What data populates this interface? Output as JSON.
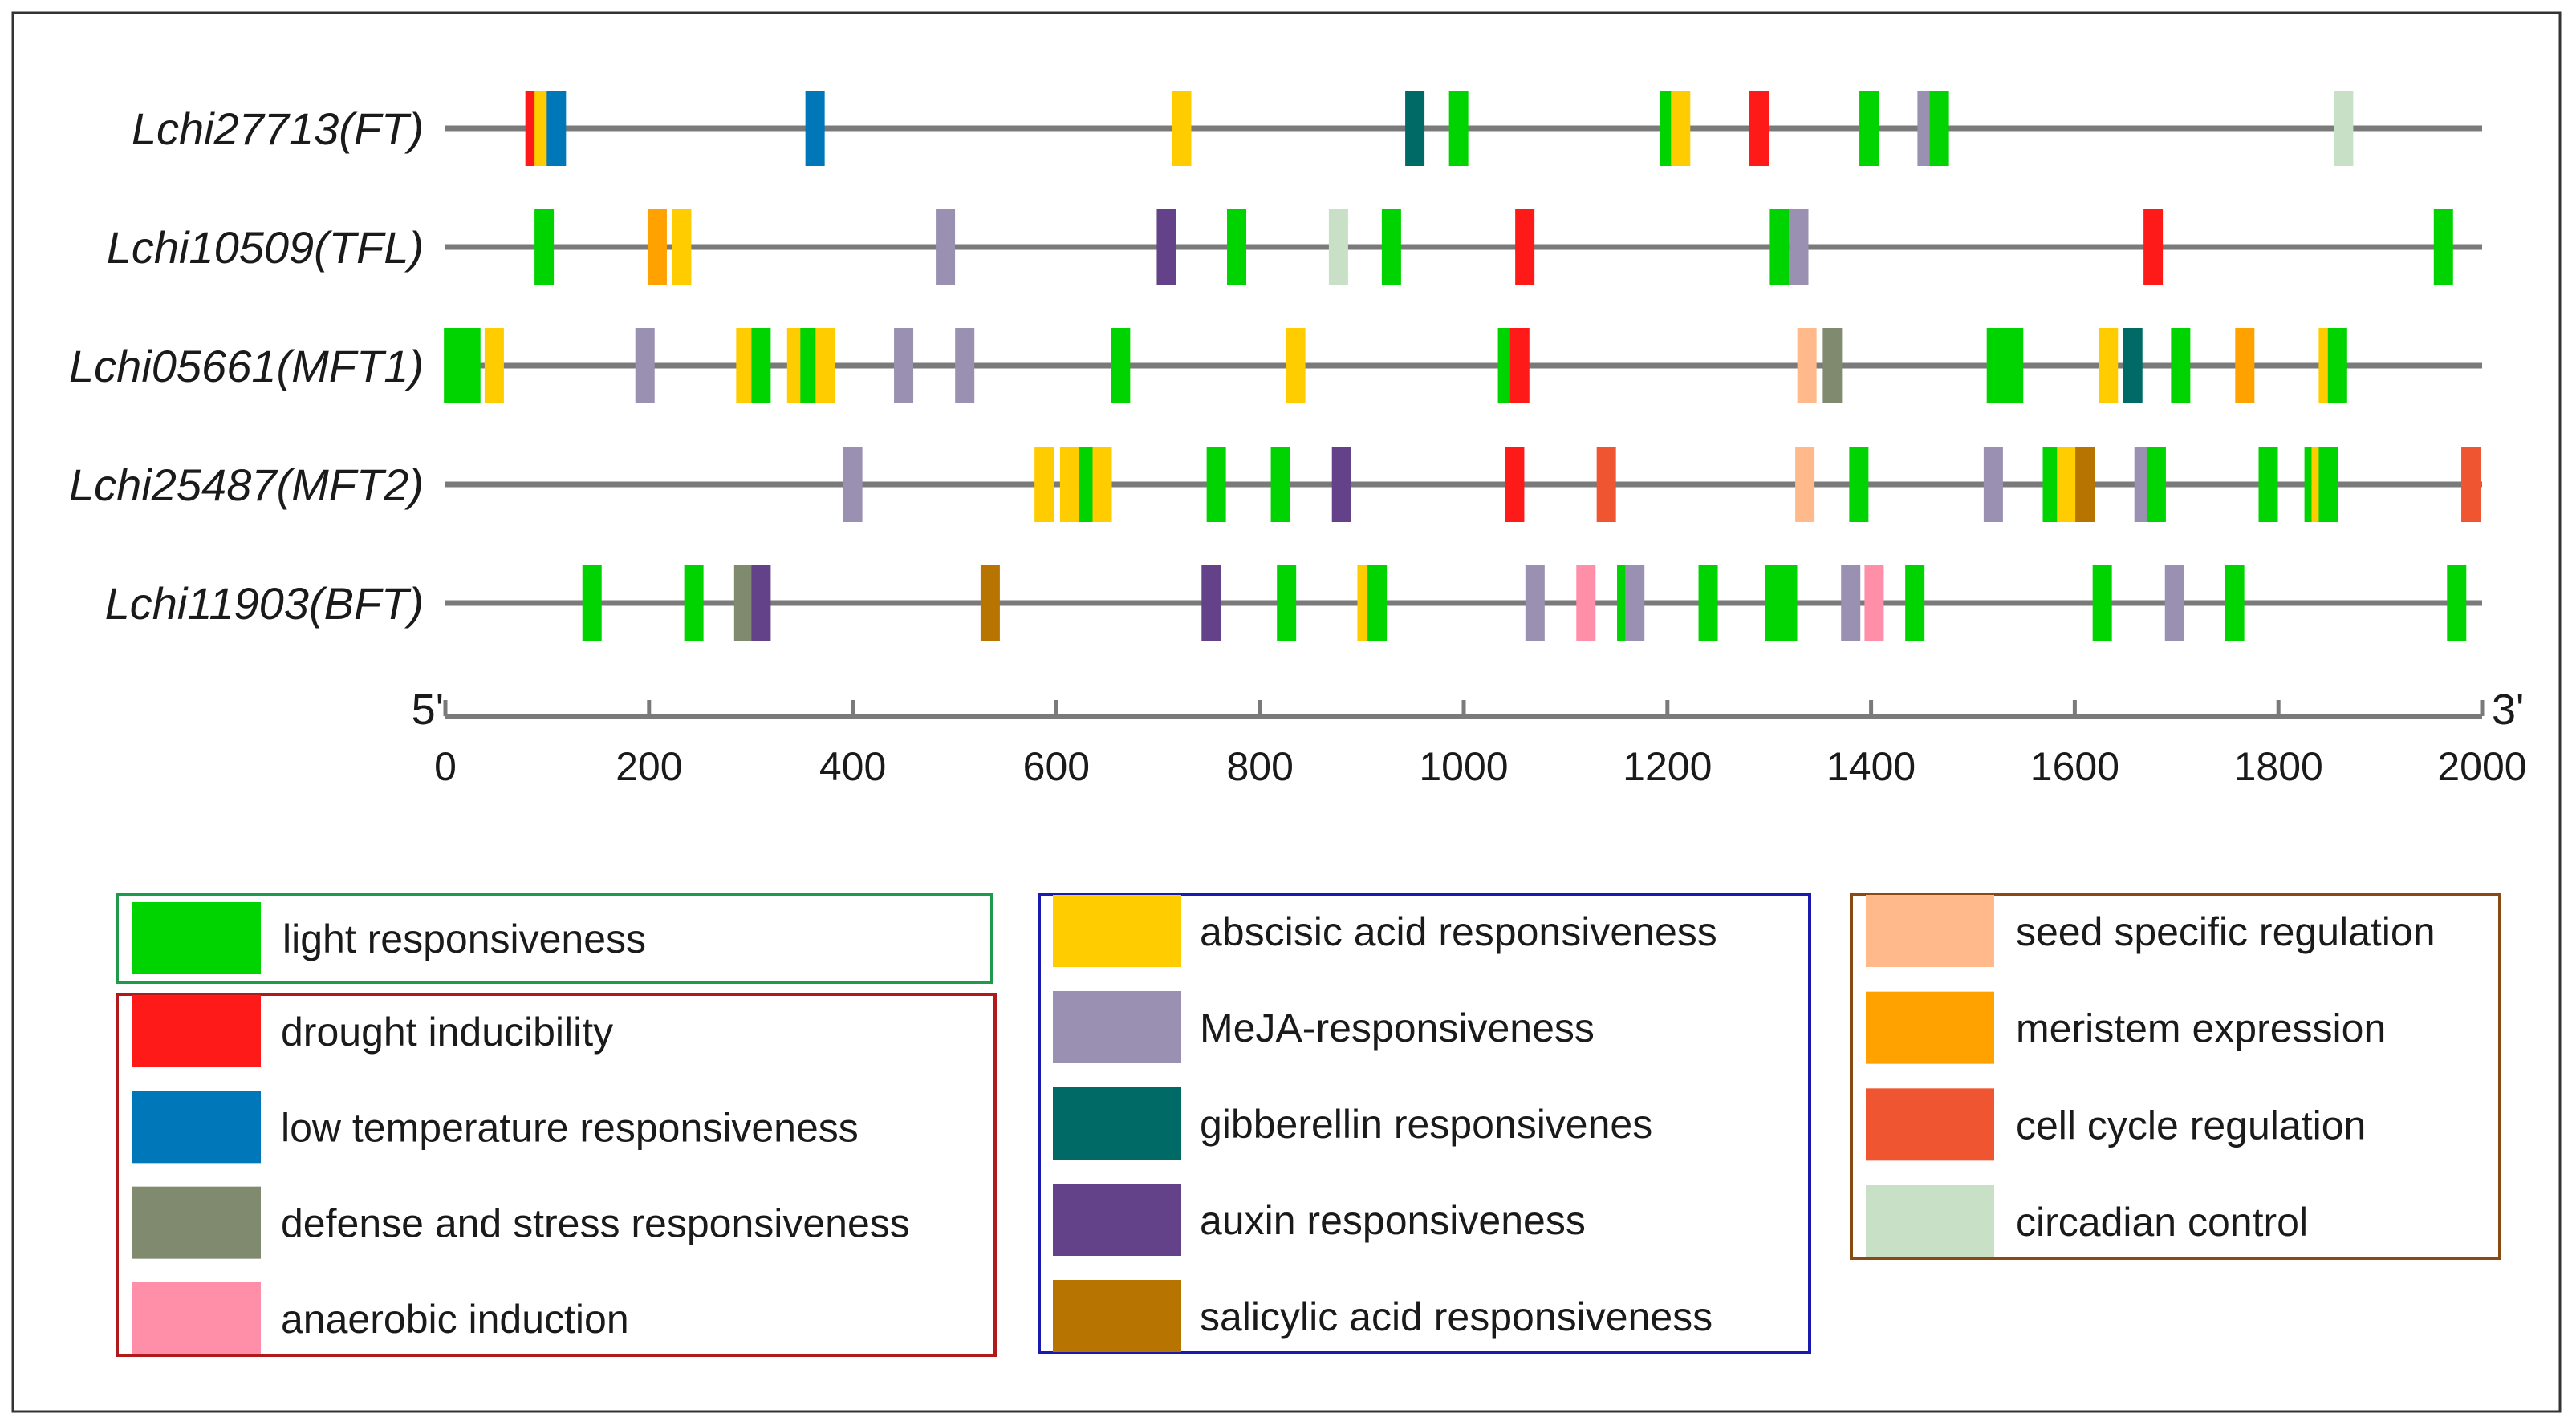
{
  "chart_data": {
    "type": "promoter-element-map",
    "xlim": [
      0,
      2000
    ],
    "xticks": [
      0,
      200,
      400,
      600,
      800,
      1000,
      1200,
      1400,
      1600,
      1800,
      2000
    ],
    "end_labels": {
      "left": "5'",
      "right": "3'"
    },
    "categories": {
      "light": {
        "label": "light responsiveness",
        "color": "#00d400"
      },
      "drought": {
        "label": "drought inducibility",
        "color": "#ff1a1a"
      },
      "lowtemp": {
        "label": "low temperature responsiveness",
        "color": "#0077b8"
      },
      "defense": {
        "label": "defense and stress responsiveness",
        "color": "#7f8a6e"
      },
      "anaerobic": {
        "label": "anaerobic induction",
        "color": "#ff8ea8"
      },
      "aba": {
        "label": "abscisic acid responsiveness",
        "color": "#ffcc00"
      },
      "meja": {
        "label": "MeJA-responsiveness",
        "color": "#9a90b2"
      },
      "gibberellin": {
        "label": "gibberellin responsivenes",
        "color": "#006b66"
      },
      "auxin": {
        "label": "auxin responsiveness",
        "color": "#64428a"
      },
      "salicylic": {
        "label": "salicylic acid responsiveness",
        "color": "#b87400"
      },
      "seed": {
        "label": "seed specific regulation",
        "color": "#ffb98a"
      },
      "meristem": {
        "label": "meristem expression",
        "color": "#ffa200"
      },
      "cellcycle": {
        "label": "cell cycle regulation",
        "color": "#ee5530"
      },
      "circadian": {
        "label": "circadian control",
        "color": "#c8e0c6"
      }
    },
    "legend_groups": [
      {
        "border": "#1e9a4a",
        "items": [
          "light"
        ]
      },
      {
        "border": "#b01a1a",
        "items": [
          "drought",
          "lowtemp",
          "defense",
          "anaerobic"
        ]
      },
      {
        "border": "#1a1ab0",
        "items": [
          "aba",
          "meja",
          "gibberellin",
          "auxin",
          "salicylic"
        ]
      },
      {
        "border": "#8a4a12",
        "items": [
          "seed",
          "meristem",
          "cellcycle",
          "circadian"
        ]
      }
    ],
    "genes": [
      {
        "name": "Lchi27713(FT)",
        "elements": [
          {
            "pos": 88,
            "type": "drought"
          },
          {
            "pos": 97,
            "type": "aba"
          },
          {
            "pos": 109,
            "type": "lowtemp"
          },
          {
            "pos": 363,
            "type": "lowtemp"
          },
          {
            "pos": 723,
            "type": "aba"
          },
          {
            "pos": 952,
            "type": "gibberellin"
          },
          {
            "pos": 995,
            "type": "light"
          },
          {
            "pos": 1202,
            "type": "light"
          },
          {
            "pos": 1213,
            "type": "aba"
          },
          {
            "pos": 1290,
            "type": "drought"
          },
          {
            "pos": 1398,
            "type": "light"
          },
          {
            "pos": 1455,
            "type": "meja"
          },
          {
            "pos": 1467,
            "type": "light"
          },
          {
            "pos": 1864,
            "type": "circadian"
          }
        ]
      },
      {
        "name": "Lchi10509(TFL)",
        "elements": [
          {
            "pos": 97,
            "type": "light"
          },
          {
            "pos": 208,
            "type": "meristem"
          },
          {
            "pos": 232,
            "type": "aba"
          },
          {
            "pos": 491,
            "type": "meja"
          },
          {
            "pos": 708,
            "type": "auxin"
          },
          {
            "pos": 777,
            "type": "light"
          },
          {
            "pos": 877,
            "type": "circadian"
          },
          {
            "pos": 929,
            "type": "light"
          },
          {
            "pos": 1060,
            "type": "drought"
          },
          {
            "pos": 1310,
            "type": "light"
          },
          {
            "pos": 1329,
            "type": "meja"
          },
          {
            "pos": 1677,
            "type": "drought"
          },
          {
            "pos": 1962,
            "type": "light"
          }
        ]
      },
      {
        "name": "Lchi05661(MFT1)",
        "elements": [
          {
            "pos": 8,
            "type": "light"
          },
          {
            "pos": 25,
            "type": "light"
          },
          {
            "pos": 48,
            "type": "aba"
          },
          {
            "pos": 196,
            "type": "meja"
          },
          {
            "pos": 295,
            "type": "aba"
          },
          {
            "pos": 310,
            "type": "light"
          },
          {
            "pos": 345,
            "type": "aba"
          },
          {
            "pos": 358,
            "type": "light"
          },
          {
            "pos": 373,
            "type": "aba"
          },
          {
            "pos": 450,
            "type": "meja"
          },
          {
            "pos": 510,
            "type": "meja"
          },
          {
            "pos": 663,
            "type": "light"
          },
          {
            "pos": 835,
            "type": "aba"
          },
          {
            "pos": 1043,
            "type": "light"
          },
          {
            "pos": 1055,
            "type": "drought"
          },
          {
            "pos": 1337,
            "type": "seed"
          },
          {
            "pos": 1362,
            "type": "defense"
          },
          {
            "pos": 1523,
            "type": "light"
          },
          {
            "pos": 1540,
            "type": "light"
          },
          {
            "pos": 1633,
            "type": "aba"
          },
          {
            "pos": 1657,
            "type": "gibberellin"
          },
          {
            "pos": 1704,
            "type": "light"
          },
          {
            "pos": 1767,
            "type": "meristem"
          },
          {
            "pos": 1849,
            "type": "aba"
          },
          {
            "pos": 1858,
            "type": "light"
          }
        ]
      },
      {
        "name": "Lchi25487(MFT2)",
        "elements": [
          {
            "pos": 400,
            "type": "meja"
          },
          {
            "pos": 588,
            "type": "aba"
          },
          {
            "pos": 613,
            "type": "aba"
          },
          {
            "pos": 632,
            "type": "light"
          },
          {
            "pos": 645,
            "type": "aba"
          },
          {
            "pos": 757,
            "type": "light"
          },
          {
            "pos": 820,
            "type": "light"
          },
          {
            "pos": 880,
            "type": "auxin"
          },
          {
            "pos": 1050,
            "type": "drought"
          },
          {
            "pos": 1140,
            "type": "cellcycle"
          },
          {
            "pos": 1335,
            "type": "seed"
          },
          {
            "pos": 1388,
            "type": "light"
          },
          {
            "pos": 1520,
            "type": "meja"
          },
          {
            "pos": 1578,
            "type": "light"
          },
          {
            "pos": 1592,
            "type": "aba"
          },
          {
            "pos": 1610,
            "type": "salicylic"
          },
          {
            "pos": 1668,
            "type": "meja"
          },
          {
            "pos": 1680,
            "type": "light"
          },
          {
            "pos": 1790,
            "type": "light"
          },
          {
            "pos": 1835,
            "type": "light"
          },
          {
            "pos": 1842,
            "type": "aba"
          },
          {
            "pos": 1849,
            "type": "light"
          },
          {
            "pos": 1989,
            "type": "cellcycle"
          }
        ]
      },
      {
        "name": "Lchi11903(BFT)",
        "elements": [
          {
            "pos": 144,
            "type": "light"
          },
          {
            "pos": 244,
            "type": "light"
          },
          {
            "pos": 293,
            "type": "defense"
          },
          {
            "pos": 310,
            "type": "auxin"
          },
          {
            "pos": 535,
            "type": "salicylic"
          },
          {
            "pos": 752,
            "type": "auxin"
          },
          {
            "pos": 826,
            "type": "light"
          },
          {
            "pos": 905,
            "type": "aba"
          },
          {
            "pos": 915,
            "type": "light"
          },
          {
            "pos": 1070,
            "type": "meja"
          },
          {
            "pos": 1120,
            "type": "anaerobic"
          },
          {
            "pos": 1160,
            "type": "light"
          },
          {
            "pos": 1168,
            "type": "meja"
          },
          {
            "pos": 1240,
            "type": "light"
          },
          {
            "pos": 1305,
            "type": "light"
          },
          {
            "pos": 1318,
            "type": "light"
          },
          {
            "pos": 1380,
            "type": "meja"
          },
          {
            "pos": 1403,
            "type": "anaerobic"
          },
          {
            "pos": 1443,
            "type": "light"
          },
          {
            "pos": 1627,
            "type": "light"
          },
          {
            "pos": 1698,
            "type": "meja"
          },
          {
            "pos": 1757,
            "type": "light"
          },
          {
            "pos": 1975,
            "type": "light"
          }
        ]
      }
    ]
  }
}
